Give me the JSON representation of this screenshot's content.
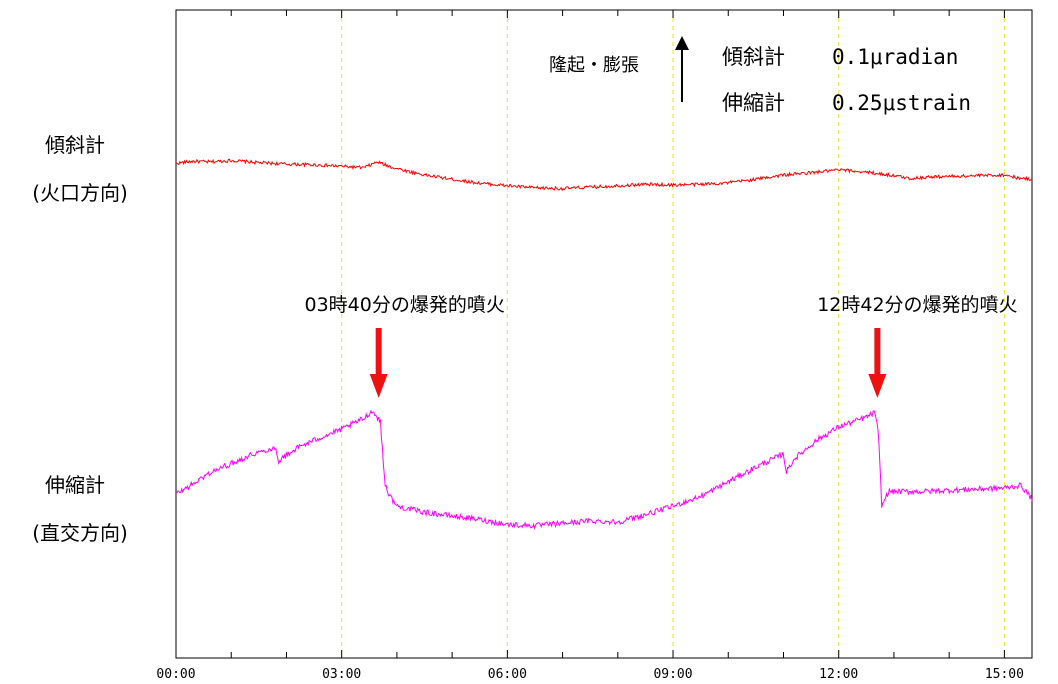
{
  "chart_data": {
    "type": "line",
    "x_tick_labels": [
      "00:00",
      "03:00",
      "06:00",
      "09:00",
      "12:00",
      "15:00"
    ],
    "xlim_hours": [
      0,
      15.5
    ],
    "row_labels": {
      "tilt": {
        "line1": "傾斜計",
        "line2": "(火口方向)"
      },
      "strain": {
        "line1": "伸縮計",
        "line2": "(直交方向)"
      }
    },
    "legend": {
      "direction": "隆起・膨張",
      "tilt_name": "傾斜計",
      "tilt_scale": "0.1μradian",
      "strain_name": "伸縮計",
      "strain_scale": "0.25μstrain"
    },
    "annotations": [
      {
        "text": "03時40分の爆発的噴火",
        "time": 3.67
      },
      {
        "text": "12時42分の爆発的噴火",
        "time": 12.7
      }
    ],
    "series": [
      {
        "name": "傾斜計",
        "color": "#ff0000",
        "x": [
          0,
          0.3,
          0.6,
          1.0,
          1.5,
          2.0,
          2.5,
          3.0,
          3.4,
          3.65,
          3.75,
          3.9,
          4.2,
          4.5,
          5.0,
          5.5,
          6.0,
          6.5,
          7.0,
          7.5,
          8.0,
          8.5,
          9.0,
          9.5,
          10.0,
          10.5,
          11.0,
          11.5,
          12.0,
          12.5,
          13.0,
          13.3,
          13.6,
          14.0,
          14.5,
          15.0,
          15.3,
          15.5
        ],
        "values": [
          6.0,
          6.6,
          6.4,
          6.8,
          6.2,
          5.8,
          5.6,
          5.2,
          4.8,
          6.4,
          5.8,
          5.0,
          3.8,
          2.8,
          1.6,
          0.5,
          -0.2,
          -0.8,
          -1.0,
          -0.6,
          -0.2,
          0.2,
          0.0,
          0.2,
          0.6,
          1.6,
          2.8,
          3.4,
          4.2,
          3.6,
          2.6,
          1.8,
          2.2,
          2.4,
          2.6,
          2.8,
          1.8,
          1.6
        ]
      },
      {
        "name": "伸縮計",
        "color": "#ff00ff",
        "x": [
          0,
          0.3,
          0.6,
          1.0,
          1.4,
          1.8,
          1.85,
          2.2,
          2.6,
          3.0,
          3.4,
          3.55,
          3.7,
          3.78,
          3.85,
          4.0,
          4.5,
          5.0,
          5.5,
          6.0,
          6.5,
          7.0,
          7.5,
          8.0,
          8.5,
          9.0,
          9.5,
          10.0,
          10.5,
          11.0,
          11.05,
          11.2,
          11.6,
          12.0,
          12.5,
          12.66,
          12.72,
          12.78,
          12.9,
          13.5,
          14.0,
          14.5,
          15.0,
          15.3,
          15.5
        ],
        "values": [
          0.0,
          1.6,
          3.4,
          5.0,
          6.6,
          7.6,
          5.4,
          7.6,
          9.2,
          10.6,
          12.4,
          13.6,
          12.0,
          2.0,
          0.0,
          -2.0,
          -3.0,
          -3.6,
          -4.2,
          -5.0,
          -5.2,
          -4.8,
          -4.4,
          -4.6,
          -3.4,
          -2.0,
          -0.4,
          2.0,
          4.4,
          6.6,
          3.6,
          5.8,
          8.8,
          11.0,
          12.6,
          13.4,
          9.6,
          -2.0,
          0.4,
          0.4,
          0.6,
          0.8,
          1.0,
          1.4,
          -0.8
        ]
      }
    ]
  }
}
